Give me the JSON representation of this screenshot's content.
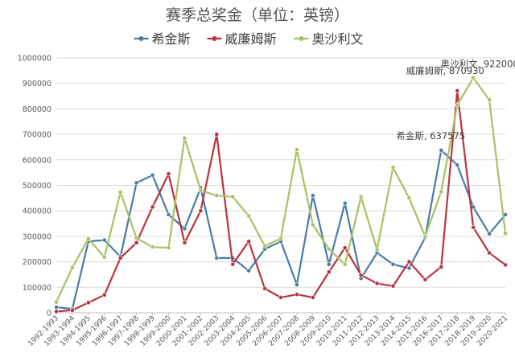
{
  "chart_data": {
    "type": "line",
    "title": "赛季总奖金（单位：英镑）",
    "xlabel": "",
    "ylabel": "",
    "ylim": [
      0,
      1000000
    ],
    "yticks": [
      0,
      100000,
      200000,
      300000,
      400000,
      500000,
      600000,
      700000,
      800000,
      900000,
      1000000
    ],
    "ytick_labels": [
      "0",
      "100000",
      "200000",
      "300000",
      "400000",
      "500000",
      "600000",
      "700000",
      "800000",
      "900000",
      "1000000"
    ],
    "grid": true,
    "legend_position": "top",
    "categories": [
      "1992-1993",
      "1993-1994",
      "1994-1995",
      "1995-1996",
      "1996-1997",
      "1997-1998",
      "1998-1999",
      "1999-2000",
      "2000-2001",
      "2001-2002",
      "2002-2003",
      "2003-2004",
      "2004-2005",
      "2005-2006",
      "2006-2007",
      "2007-2008",
      "2008-2009",
      "2009-2010",
      "2010-2011",
      "2011-2012",
      "2012-2013",
      "2013-2014",
      "2014-2015",
      "2015-2016",
      "2016-2017",
      "2017-2018",
      "2018-2019",
      "2019-2020",
      "2020-2021"
    ],
    "series": [
      {
        "name": "希金斯",
        "color": "#4a7ba6",
        "values": [
          22000,
          15000,
          280000,
          285000,
          220000,
          510000,
          540000,
          385000,
          330000,
          490000,
          215000,
          215000,
          165000,
          250000,
          280000,
          110000,
          460000,
          190000,
          430000,
          135000,
          235000,
          190000,
          175000,
          295000,
          637575,
          580000,
          415000,
          310000,
          385000
        ]
      },
      {
        "name": "威廉姆斯",
        "color": "#b8343f",
        "values": [
          5000,
          10000,
          40000,
          70000,
          215000,
          275000,
          415000,
          545000,
          275000,
          400000,
          700000,
          190000,
          280000,
          95000,
          60000,
          72000,
          60000,
          160000,
          255000,
          148000,
          115000,
          105000,
          200000,
          130000,
          180000,
          870930,
          335000,
          235000,
          188000
        ]
      },
      {
        "name": "奥沙利文",
        "color": "#a6c363",
        "values": [
          42000,
          178000,
          290000,
          218000,
          473000,
          293000,
          258000,
          255000,
          685000,
          480000,
          460000,
          455000,
          380000,
          262000,
          292000,
          640000,
          345000,
          250000,
          190000,
          455000,
          248000,
          570000,
          450000,
          300000,
          475000,
          815000,
          922000,
          835000,
          312000
        ]
      }
    ],
    "annotations": [
      {
        "series": "奥沙利文",
        "category": "2018-2019",
        "text": "奥沙利文, 922000"
      },
      {
        "series": "威廉姆斯",
        "category": "2017-2018",
        "text": "威廉姆斯, 870930"
      },
      {
        "series": "希金斯",
        "category": "2016-2017",
        "text": "希金斯, 637575"
      }
    ]
  }
}
